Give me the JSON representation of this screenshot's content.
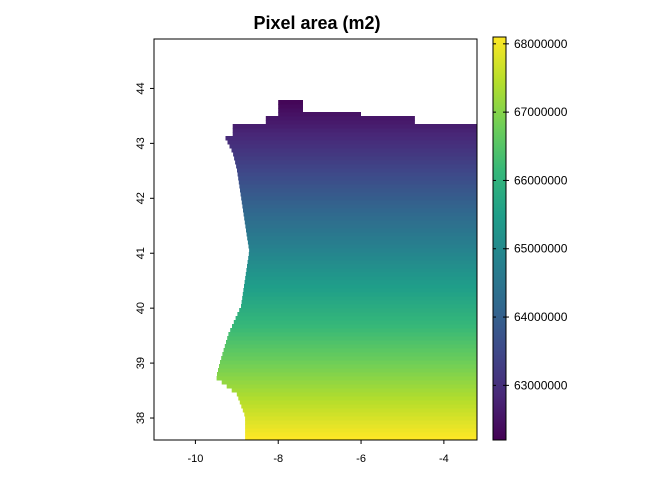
{
  "chart_data": {
    "type": "heatmap",
    "title": "Pixel area (m2)",
    "xlabel": "",
    "ylabel": "",
    "xlim": [
      -11.0,
      -3.2
    ],
    "ylim": [
      37.6,
      44.9
    ],
    "x_ticks": [
      -10,
      -8,
      -6,
      -4
    ],
    "x_tick_labels": [
      "-10",
      "-8",
      "-6",
      "-4"
    ],
    "y_ticks": [
      38,
      39,
      40,
      41,
      42,
      43,
      44
    ],
    "y_tick_labels": [
      "38",
      "39",
      "40",
      "41",
      "42",
      "43",
      "44"
    ],
    "colorbar": {
      "palette": "viridis",
      "range": [
        62200000,
        68100000
      ],
      "ticks": [
        63000000,
        64000000,
        65000000,
        66000000,
        67000000,
        68000000
      ],
      "tick_labels": [
        "63000000",
        "64000000",
        "65000000",
        "66000000",
        "67000000",
        "68000000"
      ]
    },
    "value_model": {
      "note_gradient": "values decrease with latitude",
      "value_at_lat_37.6": 68100000,
      "value_at_lat_43.8": 62200000
    },
    "extent": {
      "east_lon": -3.2,
      "south_lat": 37.6,
      "west_boundary": [
        [
          43.75,
          -8.0
        ],
        [
          43.55,
          -7.4
        ],
        [
          43.45,
          -6.0
        ],
        [
          43.35,
          -4.7
        ],
        [
          43.1,
          -9.3
        ],
        [
          42.8,
          -9.1
        ],
        [
          42.5,
          -9.0
        ],
        [
          42.0,
          -8.9
        ],
        [
          41.5,
          -8.8
        ],
        [
          41.0,
          -8.7
        ],
        [
          40.5,
          -8.8
        ],
        [
          40.0,
          -8.9
        ],
        [
          39.5,
          -9.2
        ],
        [
          39.0,
          -9.4
        ],
        [
          38.7,
          -9.5
        ],
        [
          38.4,
          -9.0
        ],
        [
          38.0,
          -8.8
        ],
        [
          37.6,
          -8.8
        ]
      ]
    },
    "colors": {
      "viridis_stops": [
        "#440154",
        "#482878",
        "#3e4989",
        "#31688e",
        "#26828e",
        "#1f9e89",
        "#35b779",
        "#6ece58",
        "#b5de2b",
        "#fde725"
      ]
    }
  }
}
